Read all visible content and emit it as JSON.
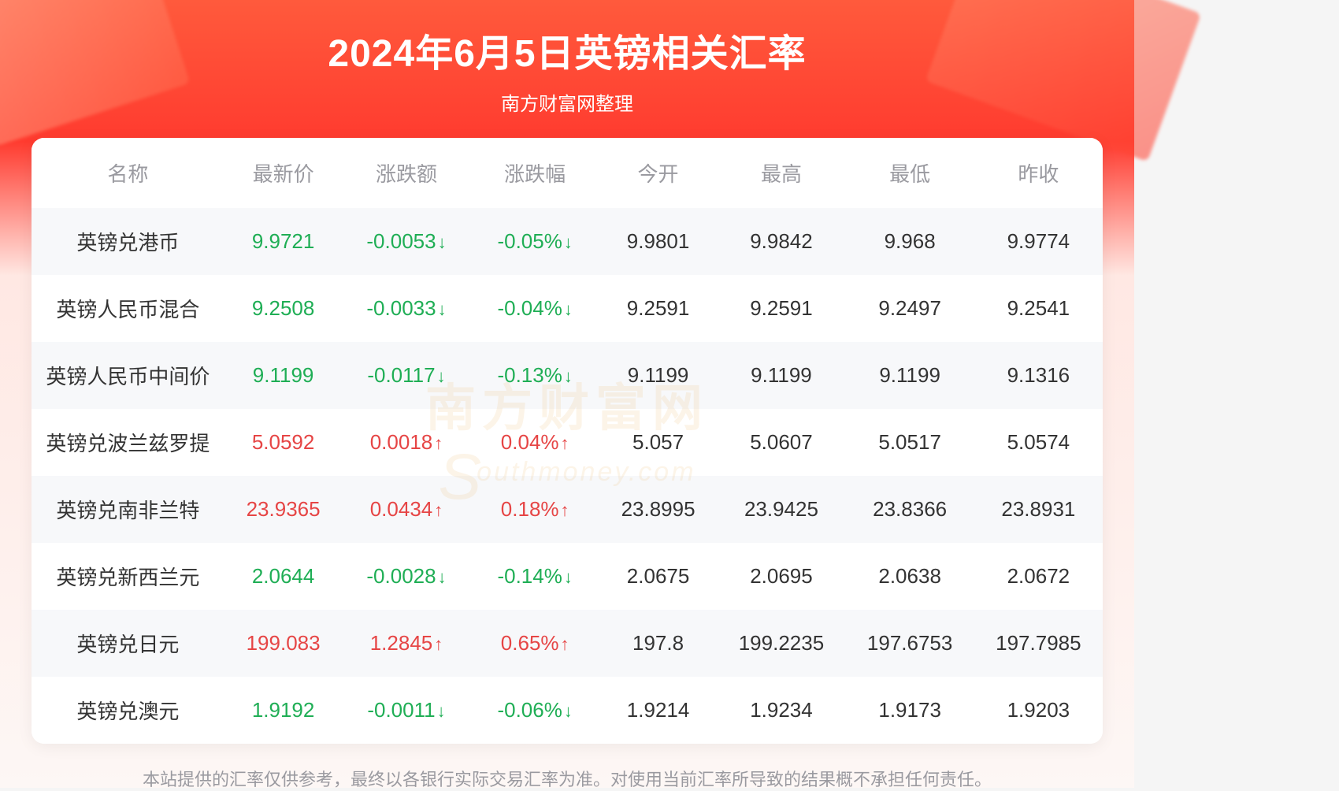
{
  "header": {
    "title": "2024年6月5日英镑相关汇率",
    "subtitle": "南方财富网整理"
  },
  "colors": {
    "up": "#e64545",
    "down": "#1fae55",
    "text": "#333333",
    "muted": "#9a9aa0",
    "header_bg_top": "#ff5a3c",
    "header_bg_mid": "#ff3b2f",
    "table_row_odd": "#f7f8fa",
    "table_row_even": "#ffffff",
    "watermark": "#e8a84a"
  },
  "watermark": {
    "cn": "南方财富网",
    "en": "outhmoney.com",
    "s": "S"
  },
  "table": {
    "columns": [
      "名称",
      "最新价",
      "涨跌额",
      "涨跌幅",
      "今开",
      "最高",
      "最低",
      "昨收"
    ],
    "rows": [
      {
        "name": "英镑兑港币",
        "price": "9.9721",
        "chg": "-0.0053",
        "pct": "-0.05%",
        "dir": "down",
        "open": "9.9801",
        "high": "9.9842",
        "low": "9.968",
        "prev": "9.9774"
      },
      {
        "name": "英镑人民币混合",
        "price": "9.2508",
        "chg": "-0.0033",
        "pct": "-0.04%",
        "dir": "down",
        "open": "9.2591",
        "high": "9.2591",
        "low": "9.2497",
        "prev": "9.2541"
      },
      {
        "name": "英镑人民币中间价",
        "price": "9.1199",
        "chg": "-0.0117",
        "pct": "-0.13%",
        "dir": "down",
        "open": "9.1199",
        "high": "9.1199",
        "low": "9.1199",
        "prev": "9.1316"
      },
      {
        "name": "英镑兑波兰兹罗提",
        "price": "5.0592",
        "chg": "0.0018",
        "pct": "0.04%",
        "dir": "up",
        "open": "5.057",
        "high": "5.0607",
        "low": "5.0517",
        "prev": "5.0574"
      },
      {
        "name": "英镑兑南非兰特",
        "price": "23.9365",
        "chg": "0.0434",
        "pct": "0.18%",
        "dir": "up",
        "open": "23.8995",
        "high": "23.9425",
        "low": "23.8366",
        "prev": "23.8931"
      },
      {
        "name": "英镑兑新西兰元",
        "price": "2.0644",
        "chg": "-0.0028",
        "pct": "-0.14%",
        "dir": "down",
        "open": "2.0675",
        "high": "2.0695",
        "low": "2.0638",
        "prev": "2.0672"
      },
      {
        "name": "英镑兑日元",
        "price": "199.083",
        "chg": "1.2845",
        "pct": "0.65%",
        "dir": "up",
        "open": "197.8",
        "high": "199.2235",
        "low": "197.6753",
        "prev": "197.7985"
      },
      {
        "name": "英镑兑澳元",
        "price": "1.9192",
        "chg": "-0.0011",
        "pct": "-0.06%",
        "dir": "down",
        "open": "1.9214",
        "high": "1.9234",
        "low": "1.9173",
        "prev": "1.9203"
      }
    ]
  },
  "disclaimer": "本站提供的汇率仅供参考，最终以各银行实际交易汇率为准。对使用当前汇率所导致的结果概不承担任何责任。"
}
